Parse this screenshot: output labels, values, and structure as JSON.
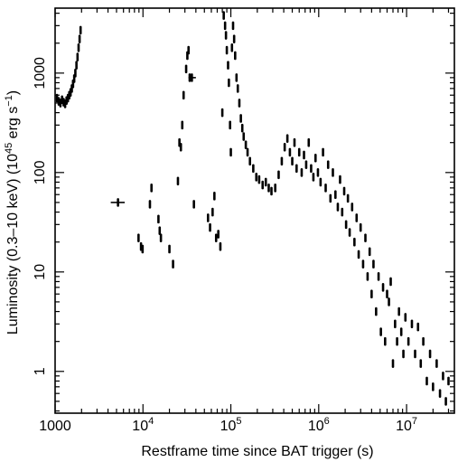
{
  "chart_data": {
    "type": "scatter",
    "title": "",
    "xlabel": "Restframe time since BAT trigger (s)",
    "ylabel_main": "Luminosity (0.3–10 keV) (10",
    "ylabel_exp": "45",
    "ylabel_unit": " erg s",
    "ylabel_unit_exp": "−1",
    "ylabel_close": ")",
    "x_scale": "log",
    "y_scale": "log",
    "xlim": [
      1000,
      35000000
    ],
    "ylim": [
      0.38,
      4500
    ],
    "x_ticks": [
      {
        "value": 1000,
        "label": "1000",
        "sup": ""
      },
      {
        "value": 10000,
        "label": "10",
        "sup": "4"
      },
      {
        "value": 100000,
        "label": "10",
        "sup": "5"
      },
      {
        "value": 1000000,
        "label": "10",
        "sup": "6"
      },
      {
        "value": 10000000,
        "label": "10",
        "sup": "7"
      }
    ],
    "y_ticks": [
      {
        "value": 1,
        "label": "1"
      },
      {
        "value": 10,
        "label": "10"
      },
      {
        "value": 100,
        "label": "100"
      },
      {
        "value": 1000,
        "label": "1000"
      }
    ],
    "grid": false,
    "legend": "none",
    "marker_color": "#000000",
    "series": [
      {
        "points": [
          {
            "x": 1050,
            "y": 560
          },
          {
            "x": 1100,
            "y": 520
          },
          {
            "x": 1150,
            "y": 500
          },
          {
            "x": 1200,
            "y": 540
          },
          {
            "x": 1250,
            "y": 510
          },
          {
            "x": 1300,
            "y": 490
          },
          {
            "x": 1350,
            "y": 530
          },
          {
            "x": 1400,
            "y": 560
          },
          {
            "x": 1450,
            "y": 600
          },
          {
            "x": 1500,
            "y": 640
          },
          {
            "x": 1550,
            "y": 700
          },
          {
            "x": 1600,
            "y": 780
          },
          {
            "x": 1650,
            "y": 880
          },
          {
            "x": 1700,
            "y": 1000
          },
          {
            "x": 1750,
            "y": 1200
          },
          {
            "x": 1800,
            "y": 1450
          },
          {
            "x": 1850,
            "y": 1800
          },
          {
            "x": 1900,
            "y": 2200
          },
          {
            "x": 1950,
            "y": 2700
          },
          {
            "x": 5200,
            "y": 50,
            "xerr": [
              4300,
              6200
            ]
          },
          {
            "x": 8900,
            "y": 22
          },
          {
            "x": 9500,
            "y": 18
          },
          {
            "x": 9900,
            "y": 17
          },
          {
            "x": 12000,
            "y": 48
          },
          {
            "x": 12500,
            "y": 70
          },
          {
            "x": 15000,
            "y": 34
          },
          {
            "x": 15500,
            "y": 26
          },
          {
            "x": 16000,
            "y": 22
          },
          {
            "x": 20000,
            "y": 17
          },
          {
            "x": 22000,
            "y": 12
          },
          {
            "x": 25000,
            "y": 82
          },
          {
            "x": 26000,
            "y": 200
          },
          {
            "x": 27000,
            "y": 180
          },
          {
            "x": 28000,
            "y": 300
          },
          {
            "x": 29000,
            "y": 600
          },
          {
            "x": 31000,
            "y": 1100
          },
          {
            "x": 32000,
            "y": 1500
          },
          {
            "x": 33000,
            "y": 1700
          },
          {
            "x": 34000,
            "y": 900
          },
          {
            "x": 36000,
            "y": 900,
            "xerr": [
              33000,
              40000
            ]
          },
          {
            "x": 38000,
            "y": 48
          },
          {
            "x": 55000,
            "y": 35
          },
          {
            "x": 58000,
            "y": 28
          },
          {
            "x": 62000,
            "y": 40
          },
          {
            "x": 65000,
            "y": 58
          },
          {
            "x": 68000,
            "y": 22
          },
          {
            "x": 72000,
            "y": 24
          },
          {
            "x": 76000,
            "y": 18
          },
          {
            "x": 80000,
            "y": 400
          },
          {
            "x": 83000,
            "y": 3800
          },
          {
            "x": 86000,
            "y": 3000
          },
          {
            "x": 88000,
            "y": 2400
          },
          {
            "x": 90000,
            "y": 1700
          },
          {
            "x": 93000,
            "y": 1200
          },
          {
            "x": 95000,
            "y": 800
          },
          {
            "x": 98000,
            "y": 300
          },
          {
            "x": 100000,
            "y": 160
          },
          {
            "x": 103000,
            "y": 1800
          },
          {
            "x": 106000,
            "y": 3000
          },
          {
            "x": 109000,
            "y": 2200
          },
          {
            "x": 112000,
            "y": 1500
          },
          {
            "x": 116000,
            "y": 900
          },
          {
            "x": 120000,
            "y": 700
          },
          {
            "x": 125000,
            "y": 500
          },
          {
            "x": 130000,
            "y": 350
          },
          {
            "x": 135000,
            "y": 280
          },
          {
            "x": 140000,
            "y": 230
          },
          {
            "x": 148000,
            "y": 190
          },
          {
            "x": 155000,
            "y": 160
          },
          {
            "x": 165000,
            "y": 130
          },
          {
            "x": 180000,
            "y": 110
          },
          {
            "x": 195000,
            "y": 90
          },
          {
            "x": 210000,
            "y": 85
          },
          {
            "x": 230000,
            "y": 75
          },
          {
            "x": 250000,
            "y": 80
          },
          {
            "x": 270000,
            "y": 70
          },
          {
            "x": 290000,
            "y": 65
          },
          {
            "x": 320000,
            "y": 70
          },
          {
            "x": 350000,
            "y": 95
          },
          {
            "x": 380000,
            "y": 130
          },
          {
            "x": 410000,
            "y": 180
          },
          {
            "x": 440000,
            "y": 220
          },
          {
            "x": 470000,
            "y": 160
          },
          {
            "x": 500000,
            "y": 130
          },
          {
            "x": 530000,
            "y": 200
          },
          {
            "x": 560000,
            "y": 110
          },
          {
            "x": 600000,
            "y": 160
          },
          {
            "x": 640000,
            "y": 100
          },
          {
            "x": 680000,
            "y": 150
          },
          {
            "x": 720000,
            "y": 120
          },
          {
            "x": 770000,
            "y": 200
          },
          {
            "x": 820000,
            "y": 110
          },
          {
            "x": 870000,
            "y": 90
          },
          {
            "x": 920000,
            "y": 140
          },
          {
            "x": 980000,
            "y": 100
          },
          {
            "x": 1050000,
            "y": 80
          },
          {
            "x": 1120000,
            "y": 160
          },
          {
            "x": 1200000,
            "y": 70
          },
          {
            "x": 1280000,
            "y": 120
          },
          {
            "x": 1360000,
            "y": 55
          },
          {
            "x": 1450000,
            "y": 100
          },
          {
            "x": 1550000,
            "y": 60
          },
          {
            "x": 1650000,
            "y": 45
          },
          {
            "x": 1750000,
            "y": 85
          },
          {
            "x": 1850000,
            "y": 40
          },
          {
            "x": 1950000,
            "y": 65
          },
          {
            "x": 2050000,
            "y": 30
          },
          {
            "x": 2150000,
            "y": 55
          },
          {
            "x": 2250000,
            "y": 25
          },
          {
            "x": 2400000,
            "y": 45
          },
          {
            "x": 2550000,
            "y": 20
          },
          {
            "x": 2700000,
            "y": 35
          },
          {
            "x": 2850000,
            "y": 15
          },
          {
            "x": 3000000,
            "y": 28
          },
          {
            "x": 3200000,
            "y": 12
          },
          {
            "x": 3400000,
            "y": 22
          },
          {
            "x": 3600000,
            "y": 9
          },
          {
            "x": 3800000,
            "y": 16
          },
          {
            "x": 4000000,
            "y": 6
          },
          {
            "x": 4200000,
            "y": 12
          },
          {
            "x": 4500000,
            "y": 4
          },
          {
            "x": 4800000,
            "y": 9
          },
          {
            "x": 5100000,
            "y": 2.5
          },
          {
            "x": 5400000,
            "y": 7
          },
          {
            "x": 5700000,
            "y": 2
          },
          {
            "x": 6000000,
            "y": 6
          },
          {
            "x": 6300000,
            "y": 5
          },
          {
            "x": 6600000,
            "y": 8
          },
          {
            "x": 7000000,
            "y": 1.2
          },
          {
            "x": 7400000,
            "y": 3
          },
          {
            "x": 7800000,
            "y": 2
          },
          {
            "x": 8200000,
            "y": 4
          },
          {
            "x": 8700000,
            "y": 2.5
          },
          {
            "x": 9200000,
            "y": 1.5
          },
          {
            "x": 9700000,
            "y": 3.5
          },
          {
            "x": 10500000,
            "y": 2
          },
          {
            "x": 11500000,
            "y": 3
          },
          {
            "x": 12500000,
            "y": 1.5
          },
          {
            "x": 13500000,
            "y": 2.8
          },
          {
            "x": 14500000,
            "y": 1.2
          },
          {
            "x": 15500000,
            "y": 2
          },
          {
            "x": 17000000,
            "y": 0.8
          },
          {
            "x": 18500000,
            "y": 1.5
          },
          {
            "x": 20000000,
            "y": 0.7
          },
          {
            "x": 22000000,
            "y": 1.2
          },
          {
            "x": 24000000,
            "y": 0.6
          },
          {
            "x": 26000000,
            "y": 0.9
          },
          {
            "x": 28000000,
            "y": 0.5
          },
          {
            "x": 30000000,
            "y": 0.8
          }
        ]
      }
    ]
  }
}
